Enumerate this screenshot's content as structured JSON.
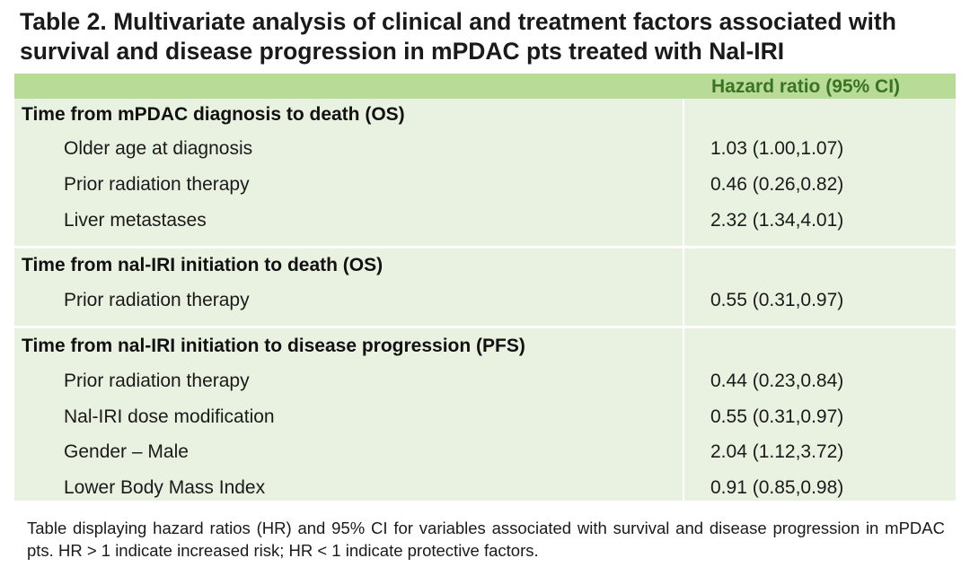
{
  "title": "Table 2. Multivariate analysis of clinical and treatment factors associated with survival and disease progression in mPDAC pts treated with Nal-IRI",
  "table": {
    "header": {
      "label_col": "",
      "value_col": "Hazard ratio (95% CI)"
    },
    "sections": [
      {
        "title": "Time from mPDAC diagnosis to death (OS)",
        "rows": [
          {
            "label": "Older age at diagnosis",
            "value": "1.03 (1.00,1.07)"
          },
          {
            "label": "Prior radiation therapy",
            "value": "0.46 (0.26,0.82)"
          },
          {
            "label": "Liver metastases",
            "value": "2.32 (1.34,4.01)"
          }
        ]
      },
      {
        "title": "Time from nal-IRI initiation to death (OS)",
        "rows": [
          {
            "label": "Prior radiation therapy",
            "value": "0.55 (0.31,0.97)"
          }
        ]
      },
      {
        "title": "Time from nal-IRI initiation to disease progression (PFS)",
        "rows": [
          {
            "label": "Prior radiation therapy",
            "value": "0.44 (0.23,0.84)"
          },
          {
            "label": "Nal-IRI dose modification",
            "value": "0.55 (0.31,0.97)"
          },
          {
            "label": "Gender – Male",
            "value": "2.04 (1.12,3.72)"
          },
          {
            "label": "Lower Body Mass Index",
            "value": "0.91 (0.85,0.98)"
          }
        ]
      }
    ]
  },
  "caption": "Table displaying hazard ratios (HR) and 95% CI for variables associated with survival and disease progression in mPDAC pts. HR > 1 indicate increased risk; HR < 1 indicate protective factors.",
  "colors": {
    "header_bg": "#b8dc98",
    "header_text": "#3a7322",
    "body_bg": "#e9f2e1",
    "divider": "#ffffff"
  }
}
